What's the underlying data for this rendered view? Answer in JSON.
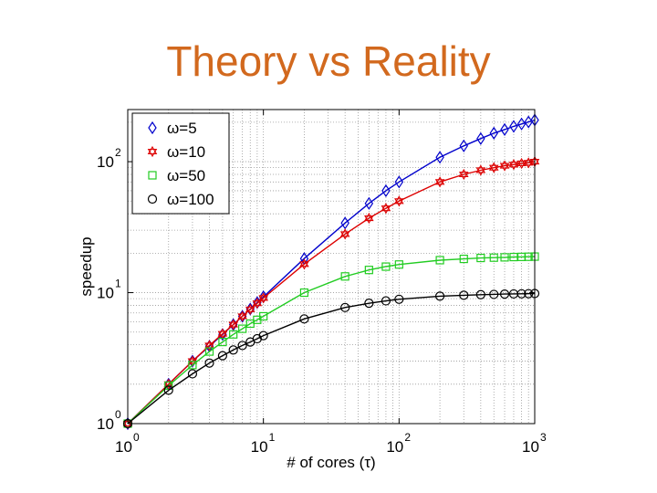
{
  "slide": {
    "title": "Theory vs Reality"
  },
  "chart_data": {
    "type": "line",
    "title": "",
    "xlabel": "# of cores (τ)",
    "ylabel": "speedup",
    "xscale": "log",
    "yscale": "log",
    "xlim": [
      1,
      1000
    ],
    "ylim": [
      1,
      250
    ],
    "xticks": [
      {
        "base": "10",
        "exp": "0"
      },
      {
        "base": "10",
        "exp": "1"
      },
      {
        "base": "10",
        "exp": "2"
      },
      {
        "base": "10",
        "exp": "3"
      }
    ],
    "yticks": [
      {
        "base": "10",
        "exp": "0"
      },
      {
        "base": "10",
        "exp": "1"
      },
      {
        "base": "10",
        "exp": "2"
      }
    ],
    "grid": true,
    "legend_position": "top-left",
    "x_points": [
      1,
      2,
      3,
      4,
      5,
      6,
      7,
      8,
      9,
      10,
      20,
      40,
      60,
      80,
      100,
      200,
      300,
      400,
      500,
      600,
      700,
      800,
      900,
      1000
    ],
    "series": [
      {
        "name": "ω=5",
        "marker": "diamond",
        "color": "#0000cc",
        "values": [
          1,
          2,
          3,
          3.9,
          4.8,
          5.7,
          6.6,
          7.5,
          8.4,
          9.3,
          18.2,
          34,
          48,
          60,
          70,
          108,
          132,
          150,
          165,
          176,
          186,
          194,
          201,
          208
        ]
      },
      {
        "name": "ω=10",
        "marker": "hexagram",
        "color": "#dd0000",
        "values": [
          1,
          2,
          3,
          3.95,
          4.85,
          5.7,
          6.6,
          7.45,
          8.3,
          9.1,
          16.5,
          28,
          37,
          44,
          50,
          70,
          80,
          86,
          90,
          93,
          95,
          97,
          98,
          100
        ]
      },
      {
        "name": "ω=50",
        "marker": "square",
        "color": "#22cc22",
        "values": [
          1,
          1.95,
          2.8,
          3.55,
          4.2,
          4.8,
          5.3,
          5.8,
          6.2,
          6.6,
          10,
          13.3,
          14.9,
          15.8,
          16.4,
          17.7,
          18.1,
          18.4,
          18.5,
          18.6,
          18.7,
          18.75,
          18.8,
          18.85
        ]
      },
      {
        "name": "ω=100",
        "marker": "circle",
        "color": "#000000",
        "values": [
          1,
          1.8,
          2.4,
          2.9,
          3.3,
          3.65,
          3.95,
          4.2,
          4.45,
          4.7,
          6.3,
          7.7,
          8.3,
          8.65,
          8.9,
          9.4,
          9.55,
          9.65,
          9.7,
          9.75,
          9.78,
          9.8,
          9.82,
          9.85
        ]
      }
    ]
  }
}
